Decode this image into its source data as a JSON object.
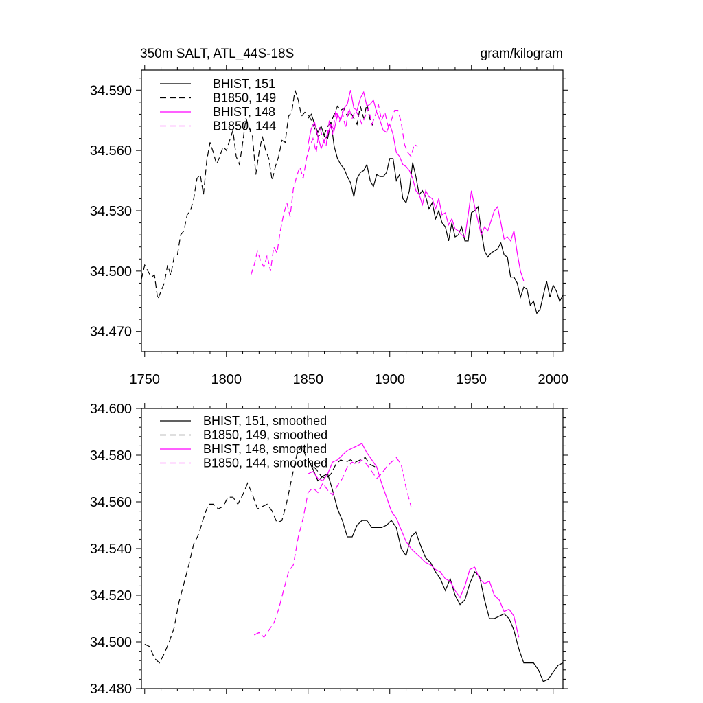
{
  "colors": {
    "black": "#000000",
    "magenta": "#ff00ff"
  },
  "chart_data": [
    {
      "type": "line",
      "title": "350m SALT, ATL_44S-18S",
      "units": "gram/kilogram",
      "xlim": [
        1748,
        2006
      ],
      "ylim": [
        34.46,
        34.6
      ],
      "xticks": [
        1750,
        1800,
        1850,
        1900,
        1950,
        2000
      ],
      "xtick_labels": [
        "1750",
        "1800",
        "1850",
        "1900",
        "1950",
        "2000"
      ],
      "yticks": [
        34.47,
        34.5,
        34.53,
        34.56,
        34.59
      ],
      "ytick_labels": [
        "34.470",
        "34.500",
        "34.530",
        "34.560",
        "34.590"
      ],
      "series": [
        {
          "name": "BHIST, 151",
          "color": "#000000",
          "dash": "solid",
          "x": [
            1850,
            1852,
            1854,
            1856,
            1858,
            1860,
            1862,
            1864,
            1866,
            1868,
            1870,
            1872,
            1874,
            1876,
            1878,
            1880,
            1882,
            1884,
            1886,
            1888,
            1890,
            1892,
            1894,
            1896,
            1898,
            1900,
            1902,
            1904,
            1906,
            1908,
            1910,
            1912,
            1914,
            1916,
            1918,
            1920,
            1922,
            1924,
            1926,
            1928,
            1930,
            1932,
            1934,
            1936,
            1938,
            1940,
            1942,
            1944,
            1946,
            1948,
            1950,
            1952,
            1954,
            1956,
            1958,
            1960,
            1962,
            1964,
            1966,
            1968,
            1970,
            1972,
            1974,
            1976,
            1978,
            1980,
            1982,
            1984,
            1986,
            1988,
            1990,
            1992,
            1994,
            1996,
            1998,
            2000,
            2002,
            2004,
            2006
          ],
          "y": [
            34.576,
            34.578,
            34.573,
            34.569,
            34.572,
            34.567,
            34.566,
            34.574,
            34.562,
            34.556,
            34.553,
            34.551,
            34.547,
            34.544,
            34.537,
            34.546,
            34.549,
            34.55,
            34.553,
            34.545,
            34.542,
            34.548,
            34.547,
            34.547,
            34.549,
            34.556,
            34.556,
            34.545,
            34.548,
            34.536,
            34.534,
            34.54,
            34.554,
            34.547,
            34.538,
            34.54,
            34.537,
            34.531,
            34.534,
            34.526,
            34.53,
            34.524,
            34.522,
            34.515,
            34.524,
            34.517,
            34.518,
            34.522,
            34.515,
            34.515,
            34.529,
            34.53,
            34.532,
            34.52,
            34.51,
            34.507,
            34.509,
            34.51,
            34.511,
            34.514,
            34.508,
            34.507,
            34.497,
            34.497,
            34.494,
            34.487,
            34.492,
            34.491,
            34.483,
            34.485,
            34.479,
            34.481,
            34.488,
            34.495,
            34.487,
            34.493,
            34.49,
            34.485,
            34.488
          ]
        },
        {
          "name": "B1850, 149",
          "color": "#000000",
          "dash": "dashed",
          "x": [
            1748,
            1750,
            1752,
            1754,
            1756,
            1758,
            1760,
            1762,
            1764,
            1766,
            1768,
            1770,
            1772,
            1774,
            1776,
            1778,
            1780,
            1782,
            1784,
            1786,
            1788,
            1790,
            1792,
            1794,
            1796,
            1798,
            1800,
            1802,
            1804,
            1806,
            1808,
            1810,
            1812,
            1814,
            1816,
            1818,
            1820,
            1822,
            1824,
            1826,
            1828,
            1830,
            1832,
            1834,
            1836,
            1838,
            1840,
            1842,
            1844,
            1846,
            1848,
            1850,
            1852,
            1854,
            1856,
            1858,
            1860,
            1862,
            1864,
            1866,
            1868,
            1870,
            1872,
            1874,
            1876,
            1878,
            1880,
            1882,
            1884,
            1886,
            1888,
            1890
          ],
          "y": [
            34.496,
            34.503,
            34.5,
            34.497,
            34.498,
            34.486,
            34.49,
            34.494,
            34.503,
            34.498,
            34.507,
            34.508,
            34.518,
            34.52,
            34.528,
            34.53,
            34.536,
            34.546,
            34.548,
            34.538,
            34.555,
            34.564,
            34.559,
            34.553,
            34.557,
            34.562,
            34.56,
            34.565,
            34.57,
            34.557,
            34.553,
            34.564,
            34.576,
            34.571,
            34.567,
            34.548,
            34.559,
            34.567,
            34.56,
            34.556,
            34.545,
            34.552,
            34.557,
            34.565,
            34.564,
            34.577,
            34.579,
            34.59,
            34.585,
            34.577,
            34.579,
            34.578,
            34.575,
            34.571,
            34.567,
            34.568,
            34.568,
            34.572,
            34.574,
            34.578,
            34.582,
            34.58,
            34.581,
            34.577,
            34.579,
            34.576,
            34.573,
            34.582,
            34.576,
            34.583,
            34.575,
            34.572
          ]
        },
        {
          "name": "BHIST, 148",
          "color": "#ff00ff",
          "dash": "solid",
          "x": [
            1850,
            1852,
            1854,
            1856,
            1858,
            1860,
            1862,
            1864,
            1866,
            1868,
            1870,
            1872,
            1874,
            1876,
            1878,
            1880,
            1882,
            1884,
            1886,
            1888,
            1890,
            1892,
            1894,
            1896,
            1898,
            1900,
            1902,
            1904,
            1906,
            1908,
            1910,
            1912,
            1914,
            1916,
            1918,
            1920,
            1922,
            1924,
            1926,
            1928,
            1930,
            1932,
            1934,
            1936,
            1938,
            1940,
            1942,
            1944,
            1946,
            1948,
            1950,
            1952,
            1954,
            1956,
            1958,
            1960,
            1962,
            1964,
            1966,
            1968,
            1970,
            1972,
            1974,
            1976,
            1978,
            1980,
            1982
          ],
          "y": [
            34.563,
            34.571,
            34.574,
            34.567,
            34.561,
            34.565,
            34.568,
            34.573,
            34.57,
            34.578,
            34.575,
            34.581,
            34.583,
            34.59,
            34.581,
            34.58,
            34.586,
            34.589,
            34.582,
            34.583,
            34.585,
            34.579,
            34.575,
            34.57,
            34.569,
            34.573,
            34.568,
            34.559,
            34.557,
            34.553,
            34.552,
            34.55,
            34.546,
            34.54,
            34.538,
            34.533,
            34.54,
            34.537,
            34.536,
            34.531,
            34.536,
            34.528,
            34.529,
            34.523,
            34.526,
            34.521,
            34.52,
            34.518,
            34.517,
            34.528,
            34.54,
            34.532,
            34.525,
            34.518,
            34.522,
            34.52,
            34.525,
            34.53,
            34.532,
            34.524,
            34.516,
            34.517,
            34.515,
            34.52,
            34.509,
            34.5,
            34.495
          ]
        },
        {
          "name": "B1850, 144",
          "color": "#ff00ff",
          "dash": "dashed",
          "x": [
            1815,
            1817,
            1819,
            1821,
            1823,
            1825,
            1827,
            1829,
            1831,
            1833,
            1835,
            1837,
            1839,
            1841,
            1843,
            1845,
            1847,
            1849,
            1851,
            1853,
            1855,
            1857,
            1859,
            1861,
            1863,
            1865,
            1867,
            1869,
            1871,
            1873,
            1875,
            1877,
            1879,
            1881,
            1883,
            1885,
            1887,
            1889,
            1891,
            1893,
            1895,
            1897,
            1899,
            1901,
            1903,
            1905,
            1907,
            1909,
            1911,
            1913,
            1915,
            1917
          ],
          "y": [
            34.498,
            34.503,
            34.51,
            34.505,
            34.502,
            34.508,
            34.5,
            34.512,
            34.509,
            34.52,
            34.528,
            34.534,
            34.527,
            34.541,
            34.547,
            34.552,
            34.546,
            34.556,
            34.562,
            34.566,
            34.559,
            34.572,
            34.566,
            34.562,
            34.575,
            34.568,
            34.58,
            34.574,
            34.579,
            34.571,
            34.581,
            34.576,
            34.58,
            34.577,
            34.573,
            34.577,
            34.581,
            34.573,
            34.577,
            34.583,
            34.575,
            34.579,
            34.572,
            34.575,
            34.58,
            34.58,
            34.574,
            34.563,
            34.559,
            34.557,
            34.563,
            34.562
          ]
        }
      ]
    },
    {
      "type": "line",
      "title": "",
      "xlim": [
        1748,
        2006
      ],
      "ylim": [
        34.48,
        34.6
      ],
      "xticks": [
        1750,
        1800,
        1850,
        1900,
        1950,
        2000
      ],
      "yticks": [
        34.48,
        34.5,
        34.52,
        34.54,
        34.56,
        34.58,
        34.6
      ],
      "ytick_labels": [
        "34.480",
        "34.500",
        "34.520",
        "34.540",
        "34.560",
        "34.580",
        "34.600"
      ],
      "series": [
        {
          "name": "BHIST, 151, smoothed",
          "color": "#000000",
          "dash": "solid",
          "x": [
            1850,
            1853,
            1856,
            1859,
            1862,
            1865,
            1868,
            1871,
            1874,
            1877,
            1880,
            1883,
            1886,
            1889,
            1892,
            1895,
            1898,
            1901,
            1904,
            1907,
            1910,
            1913,
            1916,
            1919,
            1922,
            1925,
            1928,
            1931,
            1934,
            1937,
            1940,
            1943,
            1946,
            1949,
            1952,
            1955,
            1958,
            1961,
            1964,
            1967,
            1970,
            1973,
            1976,
            1979,
            1982,
            1985,
            1988,
            1991,
            1994,
            1997,
            2000,
            2003,
            2006
          ],
          "y": [
            34.578,
            34.574,
            34.569,
            34.571,
            34.572,
            34.565,
            34.557,
            34.552,
            34.545,
            34.545,
            34.55,
            34.552,
            34.552,
            34.549,
            34.549,
            34.549,
            34.55,
            34.552,
            34.549,
            34.54,
            34.537,
            34.545,
            34.547,
            34.541,
            34.536,
            34.534,
            34.53,
            34.527,
            34.522,
            34.527,
            34.52,
            34.516,
            34.518,
            34.525,
            34.53,
            34.528,
            34.518,
            34.51,
            34.51,
            34.511,
            34.512,
            34.51,
            34.505,
            34.497,
            34.491,
            34.491,
            34.491,
            34.488,
            34.483,
            34.484,
            34.487,
            34.49,
            34.491
          ]
        },
        {
          "name": "B1850, 149, smoothed",
          "color": "#000000",
          "dash": "dashed",
          "x": [
            1750,
            1753,
            1756,
            1759,
            1762,
            1765,
            1768,
            1771,
            1774,
            1777,
            1780,
            1783,
            1786,
            1789,
            1792,
            1795,
            1798,
            1801,
            1804,
            1807,
            1810,
            1813,
            1816,
            1819,
            1822,
            1825,
            1828,
            1831,
            1834,
            1837,
            1840,
            1843,
            1846,
            1849,
            1852,
            1855,
            1858,
            1861,
            1864,
            1867,
            1870,
            1873,
            1876,
            1879,
            1882,
            1885,
            1888,
            1891
          ],
          "y": [
            34.499,
            34.498,
            34.493,
            34.491,
            34.495,
            34.5,
            34.506,
            34.517,
            34.525,
            34.533,
            34.542,
            34.546,
            34.553,
            34.559,
            34.559,
            34.557,
            34.558,
            34.562,
            34.562,
            34.559,
            34.563,
            34.568,
            34.563,
            34.557,
            34.558,
            34.559,
            34.556,
            34.551,
            34.552,
            34.56,
            34.57,
            34.58,
            34.584,
            34.579,
            34.576,
            34.574,
            34.571,
            34.57,
            34.572,
            34.576,
            34.578,
            34.577,
            34.578,
            34.577,
            34.578,
            34.579,
            34.576,
            34.575
          ]
        },
        {
          "name": "BHIST, 148, smoothed",
          "color": "#ff00ff",
          "dash": "solid",
          "x": [
            1850,
            1853,
            1856,
            1859,
            1862,
            1865,
            1868,
            1871,
            1874,
            1877,
            1880,
            1883,
            1886,
            1889,
            1892,
            1895,
            1898,
            1901,
            1904,
            1907,
            1910,
            1913,
            1916,
            1919,
            1922,
            1925,
            1928,
            1931,
            1934,
            1937,
            1940,
            1943,
            1946,
            1949,
            1952,
            1955,
            1958,
            1961,
            1964,
            1967,
            1970,
            1973,
            1976,
            1979
          ],
          "y": [
            34.572,
            34.573,
            34.57,
            34.569,
            34.572,
            34.577,
            34.578,
            34.58,
            34.582,
            34.583,
            34.584,
            34.585,
            34.581,
            34.578,
            34.575,
            34.568,
            34.562,
            34.556,
            34.553,
            34.548,
            34.543,
            34.54,
            34.538,
            34.536,
            34.534,
            34.533,
            34.531,
            34.53,
            34.527,
            34.526,
            34.522,
            34.519,
            34.524,
            34.531,
            34.532,
            34.527,
            34.525,
            34.526,
            34.52,
            34.518,
            34.513,
            34.514,
            34.511,
            34.502
          ]
        },
        {
          "name": "B1850, 144, smoothed",
          "color": "#ff00ff",
          "dash": "dashed",
          "x": [
            1817,
            1820,
            1823,
            1826,
            1829,
            1832,
            1835,
            1838,
            1841,
            1844,
            1847,
            1850,
            1853,
            1856,
            1859,
            1862,
            1865,
            1868,
            1871,
            1874,
            1877,
            1880,
            1883,
            1886,
            1889,
            1892,
            1895,
            1898,
            1901,
            1904,
            1907,
            1910,
            1913
          ],
          "y": [
            34.503,
            34.504,
            34.502,
            34.505,
            34.508,
            34.514,
            34.522,
            34.53,
            34.533,
            34.545,
            34.553,
            34.564,
            34.566,
            34.564,
            34.568,
            34.565,
            34.563,
            34.567,
            34.57,
            34.575,
            34.577,
            34.576,
            34.578,
            34.576,
            34.573,
            34.57,
            34.572,
            34.575,
            34.577,
            34.579,
            34.576,
            34.566,
            34.558
          ]
        }
      ]
    }
  ]
}
